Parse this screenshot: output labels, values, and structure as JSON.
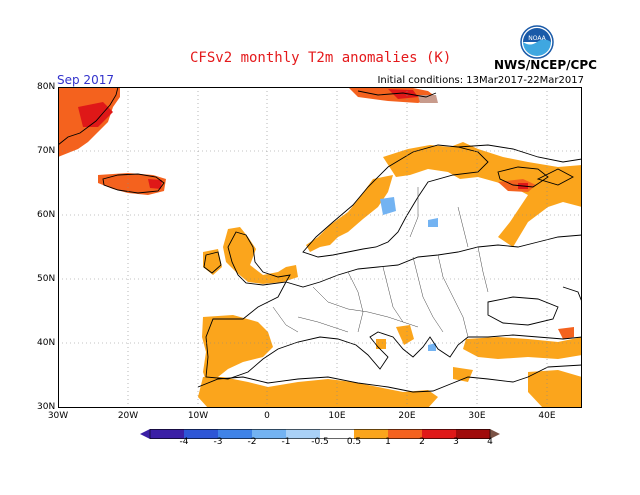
{
  "header": {
    "title": "CFSv2 monthly T2m anomalies (K)",
    "period": "Sep 2017",
    "initial_conditions": "Initial conditions: 13Mar2017-22Mar2017",
    "agency": "NWS/NCEP/CPC",
    "logo_text": "NOAA"
  },
  "map": {
    "lon_range": [
      -30,
      45
    ],
    "lat_range": [
      30,
      80
    ],
    "lat_labels": [
      "80N",
      "70N",
      "60N",
      "50N",
      "40N",
      "30N"
    ],
    "lon_labels": [
      "30W",
      "20W",
      "10W",
      "0",
      "10E",
      "20E",
      "30E",
      "40E"
    ],
    "anomaly_regions": [
      {
        "name": "greenland-east",
        "level": "1 to 2"
      },
      {
        "name": "svalbard",
        "level": "2 to 3"
      },
      {
        "name": "iceland",
        "level": "1 to 2"
      },
      {
        "name": "norway-coast",
        "level": "0.5 to 1"
      },
      {
        "name": "northern-russia",
        "level": "0.5 to 1"
      },
      {
        "name": "british-isles",
        "level": "0.5 to 1"
      },
      {
        "name": "iberia",
        "level": "0.5 to 1"
      },
      {
        "name": "north-africa",
        "level": "0.5 to 1"
      },
      {
        "name": "turkey",
        "level": "0.5 to 1"
      },
      {
        "name": "sweden",
        "level": "-1 to -0.5"
      }
    ]
  },
  "legend": {
    "ticks": [
      "-4",
      "-3",
      "-2",
      "-1",
      "-0.5",
      "0.5",
      "1",
      "2",
      "3",
      "4"
    ],
    "colors": [
      "#3b1fa6",
      "#2e56d6",
      "#3f83e8",
      "#73b3f2",
      "#a9d1f7",
      "#ffffff",
      "#fba51c",
      "#f4621e",
      "#df1818",
      "#a00b0b",
      "#c89b8c",
      "#7a5245"
    ]
  }
}
